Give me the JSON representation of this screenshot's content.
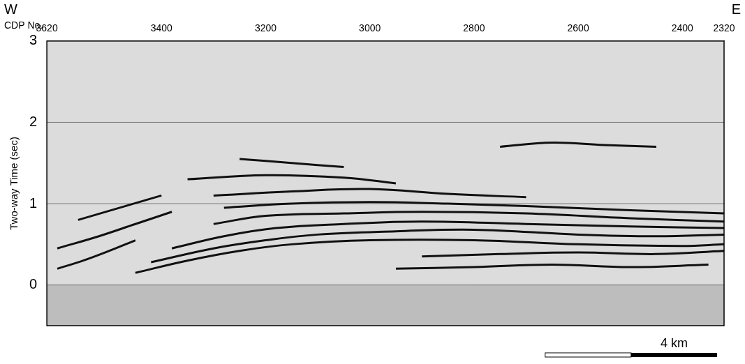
{
  "chart_data": {
    "type": "line",
    "west_label": "W",
    "east_label": "E",
    "x_label": "CDP No.",
    "y_label": "Two-way Time (sec)",
    "xlim": [
      3620,
      2320
    ],
    "xticks": [
      3620,
      3400,
      3200,
      3000,
      2800,
      2600,
      2400,
      2320
    ],
    "ylim": [
      3,
      -0.5
    ],
    "yticks": [
      0,
      1,
      2,
      3
    ],
    "grid": true,
    "color": "#111111",
    "trace_header_band": [
      -0.5,
      0
    ],
    "scale_bar": {
      "value": 4,
      "label": "4 km",
      "cdp_span": 330
    },
    "series": [
      {
        "x": [
          3450,
          3350,
          3250,
          3150,
          3000,
          2800,
          2600,
          2400,
          2320
        ],
        "values": [
          0.15,
          0.3,
          0.42,
          0.5,
          0.55,
          0.55,
          0.5,
          0.48,
          0.5
        ]
      },
      {
        "x": [
          3420,
          3300,
          3200,
          3100,
          2950,
          2800,
          2600,
          2450,
          2320
        ],
        "values": [
          0.28,
          0.45,
          0.55,
          0.62,
          0.66,
          0.68,
          0.62,
          0.6,
          0.62
        ]
      },
      {
        "x": [
          3380,
          3280,
          3180,
          3050,
          2900,
          2700,
          2500,
          2320
        ],
        "values": [
          0.45,
          0.6,
          0.7,
          0.75,
          0.78,
          0.75,
          0.72,
          0.7
        ]
      },
      {
        "x": [
          3300,
          3200,
          3050,
          2900,
          2700,
          2500,
          2320
        ],
        "values": [
          0.75,
          0.85,
          0.88,
          0.9,
          0.88,
          0.82,
          0.78
        ]
      },
      {
        "x": [
          3280,
          3150,
          3000,
          2850,
          2700,
          2500,
          2320
        ],
        "values": [
          0.95,
          1.0,
          1.02,
          1.0,
          0.97,
          0.92,
          0.88
        ]
      },
      {
        "x": [
          3300,
          3150,
          3000,
          2850,
          2700
        ],
        "values": [
          1.1,
          1.15,
          1.18,
          1.12,
          1.08
        ]
      },
      {
        "x": [
          3350,
          3200,
          3050,
          2950
        ],
        "values": [
          1.3,
          1.35,
          1.32,
          1.25
        ]
      },
      {
        "x": [
          2950,
          2800,
          2650,
          2500,
          2350
        ],
        "values": [
          0.2,
          0.22,
          0.25,
          0.22,
          0.25
        ]
      },
      {
        "x": [
          2900,
          2750,
          2600,
          2450,
          2320
        ],
        "values": [
          0.35,
          0.38,
          0.4,
          0.38,
          0.42
        ]
      },
      {
        "x": [
          3600,
          3550,
          3500,
          3450
        ],
        "values": [
          0.2,
          0.3,
          0.42,
          0.55
        ]
      },
      {
        "x": [
          3600,
          3520,
          3450,
          3380
        ],
        "values": [
          0.45,
          0.6,
          0.75,
          0.9
        ]
      },
      {
        "x": [
          3560,
          3480,
          3400
        ],
        "values": [
          0.8,
          0.95,
          1.1
        ]
      },
      {
        "x": [
          2750,
          2650,
          2550,
          2450
        ],
        "values": [
          1.7,
          1.75,
          1.72,
          1.7
        ]
      },
      {
        "x": [
          3250,
          3150,
          3050
        ],
        "values": [
          1.55,
          1.5,
          1.45
        ]
      }
    ]
  }
}
